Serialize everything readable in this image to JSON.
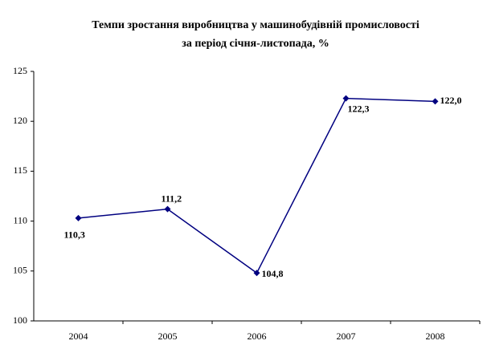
{
  "chart_data": {
    "type": "line",
    "title": [
      "Темпи зростання виробництва у машинобудівній промисловості",
      "за період січня-листопада, %"
    ],
    "categories": [
      "2004",
      "2005",
      "2006",
      "2007",
      "2008"
    ],
    "series": [
      {
        "color": "#000080",
        "values": [
          110.3,
          111.2,
          104.8,
          122.3,
          122.0
        ],
        "value_labels": [
          "110,3",
          "111,2",
          "104,8",
          "122,3",
          "122,0"
        ]
      }
    ],
    "ylim": [
      100,
      125
    ],
    "yticks": [
      100,
      105,
      110,
      115,
      120,
      125
    ],
    "grid": false
  }
}
